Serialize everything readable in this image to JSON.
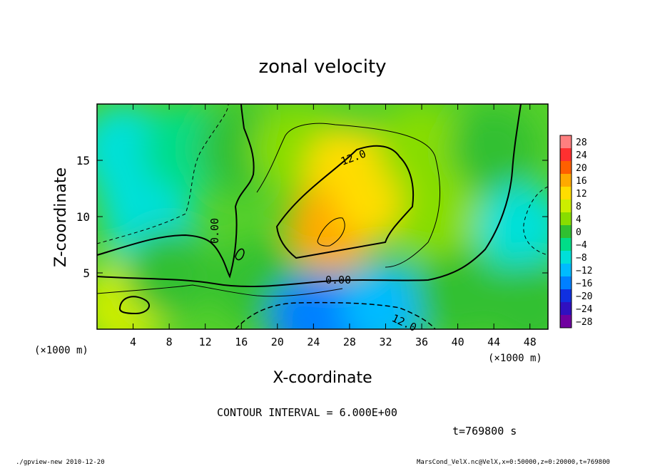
{
  "chart_data": {
    "type": "heatmap",
    "title": "zonal velocity",
    "xlabel": "X-coordinate",
    "ylabel": "Z-coordinate",
    "x_unit": "(×1000 m)",
    "y_unit": "(×1000 m)",
    "xlim": [
      0,
      50
    ],
    "ylim": [
      0,
      20
    ],
    "x_ticks": [
      4,
      8,
      12,
      16,
      20,
      24,
      28,
      32,
      36,
      40,
      44,
      48
    ],
    "y_ticks": [
      5,
      10,
      15
    ],
    "colorbar_levels": [
      28,
      24,
      20,
      16,
      12,
      8,
      4,
      0,
      -4,
      -8,
      -12,
      -16,
      -20,
      -24,
      -28
    ],
    "colorbar_colors": [
      "#ff7f7f",
      "#ff3030",
      "#ff6000",
      "#ffaa00",
      "#ffdd00",
      "#ccee00",
      "#88dd00",
      "#30c030",
      "#00dd88",
      "#00e0d8",
      "#00bbff",
      "#0080ff",
      "#1030e0",
      "#3010c0",
      "#7000a0"
    ],
    "contour_interval": "CONTOUR INTERVAL = 6.000E+00",
    "contour_labels": [
      "12.0",
      "0.00",
      "0.00",
      "12.0"
    ],
    "time": "t=769800 s",
    "field": [
      {
        "x": 3,
        "z": 16,
        "u": -6
      },
      {
        "x": 5,
        "z": 12,
        "u": -7
      },
      {
        "x": 6,
        "z": 9,
        "u": -5
      },
      {
        "x": 10,
        "z": 16,
        "u": -2
      },
      {
        "x": 16,
        "z": 16,
        "u": 1
      },
      {
        "x": 22,
        "z": 16,
        "u": 6
      },
      {
        "x": 28,
        "z": 14,
        "u": 13
      },
      {
        "x": 26,
        "z": 9,
        "u": 16
      },
      {
        "x": 31,
        "z": 12,
        "u": 14
      },
      {
        "x": 36,
        "z": 16,
        "u": 6
      },
      {
        "x": 38,
        "z": 10,
        "u": 5
      },
      {
        "x": 44,
        "z": 16,
        "u": 1
      },
      {
        "x": 47,
        "z": 9,
        "u": -6
      },
      {
        "x": 3,
        "z": 2,
        "u": 9
      },
      {
        "x": 8,
        "z": 5,
        "u": 1
      },
      {
        "x": 18,
        "z": 4,
        "u": 3
      },
      {
        "x": 24,
        "z": 1,
        "u": -16
      },
      {
        "x": 28,
        "z": 1,
        "u": -14
      },
      {
        "x": 32,
        "z": 2,
        "u": -9
      },
      {
        "x": 40,
        "z": 3,
        "u": 0
      },
      {
        "x": 48,
        "z": 2,
        "u": 2
      }
    ]
  },
  "footer": {
    "left": "./gpview-new   2010-12-20",
    "right": "MarsCond_VelX.nc@VelX,x=0:50000,z=0:20000,t=769800"
  }
}
